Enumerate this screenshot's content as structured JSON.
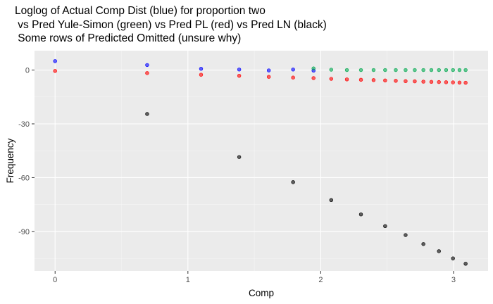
{
  "chart_data": {
    "type": "scatter",
    "title_lines": [
      "Loglog of Actual Comp Dist (blue) for proportion two",
      " vs Pred Yule-Simon (green) vs Pred PL (red) vs Pred LN (black)",
      " Some rows of Predicted Omitted (unsure why)"
    ],
    "xlabel": "Comp",
    "ylabel": "Frequency",
    "xlim": [
      -0.155,
      3.26
    ],
    "ylim": [
      -112,
      10.8
    ],
    "x_ticks": [
      0,
      1,
      2,
      3
    ],
    "x_tick_labels": [
      "0",
      "1",
      "2",
      "3"
    ],
    "y_ticks": [
      0,
      -30,
      -60,
      -90
    ],
    "y_tick_labels": [
      "0",
      "-30",
      "-60",
      "-90"
    ],
    "grid": true,
    "legend": "none",
    "series": [
      {
        "color": "#ff0000",
        "x": [
          0,
          0.693,
          1.099,
          1.386,
          1.609,
          1.792,
          1.946,
          2.079,
          2.197,
          2.303,
          2.398,
          2.485,
          2.565,
          2.639,
          2.708,
          2.773,
          2.833,
          2.89,
          2.944,
          2.996,
          3.045,
          3.091
        ],
        "y": [
          -0.5,
          -1.7,
          -2.6,
          -3.2,
          -3.8,
          -4.2,
          -4.5,
          -4.9,
          -5.2,
          -5.4,
          -5.6,
          -5.8,
          -6.0,
          -6.2,
          -6.3,
          -6.5,
          -6.6,
          -6.7,
          -6.8,
          -6.9,
          -7.0,
          -7.1
        ]
      },
      {
        "color": "#0000ff",
        "x": [
          0,
          0.693,
          1.099,
          1.386,
          1.609,
          1.792,
          1.946
        ],
        "y": [
          5.0,
          2.8,
          0.7,
          0.3,
          -0.2,
          0.3,
          -0.3
        ]
      },
      {
        "color": "#00a84f",
        "x": [
          1.946,
          2.079,
          2.197,
          2.303,
          2.398,
          2.485,
          2.565,
          2.639,
          2.708,
          2.773,
          2.833,
          2.89,
          2.944,
          2.996,
          3.045,
          3.091
        ],
        "y": [
          0.9,
          0.2,
          0,
          0,
          0,
          0,
          0,
          0,
          0,
          0,
          0,
          0,
          0,
          0,
          0,
          0
        ]
      },
      {
        "color": "#000000",
        "x": [
          0.693,
          1.386,
          1.792,
          2.079,
          2.303,
          2.485,
          2.639,
          2.773,
          2.89,
          2.996,
          3.091
        ],
        "y": [
          -24.5,
          -48.5,
          -62.5,
          -72.5,
          -80.5,
          -87,
          -92,
          -97,
          -101,
          -105,
          -108
        ]
      }
    ]
  }
}
